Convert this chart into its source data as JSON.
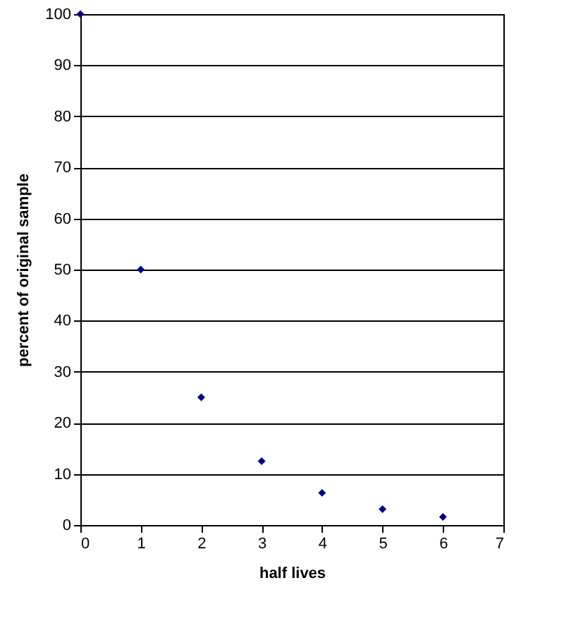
{
  "chart_data": {
    "type": "scatter",
    "xlabel": "half lives",
    "ylabel": "percent of original sample",
    "x": [
      0,
      1,
      2,
      3,
      4,
      5,
      6
    ],
    "series": [
      {
        "color": "#000080",
        "values": [
          100,
          50,
          25,
          12.5,
          6.3,
          3.1,
          1.6
        ]
      }
    ],
    "xlim": [
      0,
      7
    ],
    "xticks": [
      0,
      1,
      2,
      3,
      4,
      5,
      6,
      7
    ],
    "ylim": [
      0,
      100
    ],
    "yticks": [
      0,
      10,
      20,
      30,
      40,
      50,
      60,
      70,
      80,
      90,
      100
    ],
    "grid": "y",
    "marker": "diamond",
    "legend": false
  }
}
